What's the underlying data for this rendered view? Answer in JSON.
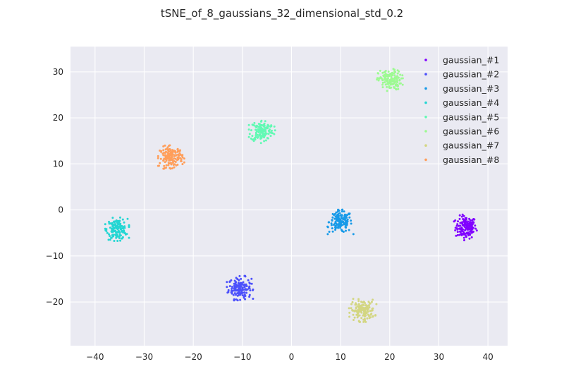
{
  "chart_data": {
    "type": "scatter",
    "title": "tSNE_of_8_gaussians_32_dimensional_std_0.2",
    "xlabel": "",
    "ylabel": "",
    "xlim": [
      -45,
      44
    ],
    "ylim": [
      -29.5,
      35.5
    ],
    "xticks": [
      -40,
      -30,
      -20,
      -10,
      0,
      10,
      20,
      30,
      40
    ],
    "yticks": [
      -20,
      -10,
      0,
      10,
      20,
      30
    ],
    "xtick_labels": [
      "−40",
      "−30",
      "−20",
      "−10",
      "0",
      "10",
      "20",
      "30",
      "40"
    ],
    "ytick_labels": [
      "−20",
      "−10",
      "0",
      "10",
      "20",
      "30"
    ],
    "grid": true,
    "legend_position": "top-right",
    "points_per_series": 150,
    "series": [
      {
        "name": "gaussian_#1",
        "color": "#8000ff",
        "center": [
          35.5,
          -3.8
        ],
        "spread": [
          2.0,
          2.3
        ]
      },
      {
        "name": "gaussian_#2",
        "color": "#4c50fb",
        "center": [
          -10.5,
          -17.0
        ],
        "spread": [
          2.2,
          2.2
        ]
      },
      {
        "name": "gaussian_#3",
        "color": "#189ae8",
        "center": [
          10.0,
          -2.6
        ],
        "spread": [
          2.2,
          2.2
        ]
      },
      {
        "name": "gaussian_#4",
        "color": "#25d6d3",
        "center": [
          -35.5,
          -4.2
        ],
        "spread": [
          2.0,
          2.1
        ]
      },
      {
        "name": "gaussian_#5",
        "color": "#62f9b4",
        "center": [
          -6.0,
          17.2
        ],
        "spread": [
          2.2,
          2.2
        ]
      },
      {
        "name": "gaussian_#6",
        "color": "#9dfa92",
        "center": [
          20.0,
          28.2
        ],
        "spread": [
          2.2,
          2.0
        ]
      },
      {
        "name": "gaussian_#7",
        "color": "#d3d682",
        "center": [
          14.5,
          -21.8
        ],
        "spread": [
          2.3,
          2.1
        ]
      },
      {
        "name": "gaussian_#8",
        "color": "#ff9e5a",
        "center": [
          -24.5,
          11.5
        ],
        "spread": [
          2.2,
          2.1
        ]
      }
    ]
  }
}
